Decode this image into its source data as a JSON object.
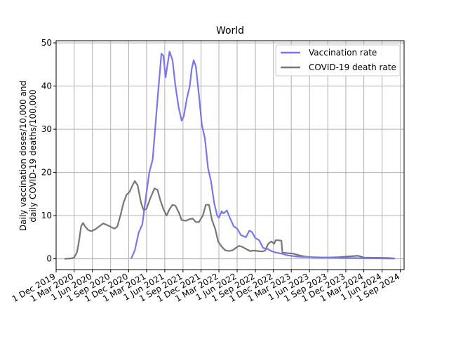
{
  "chart_data": {
    "type": "line",
    "title": "World",
    "ylabel_lines": [
      "Daily vaccination doses/10,000 and",
      "daily COVID-19 deaths/100,000"
    ],
    "xlabel": "",
    "ylim": [
      -2.5,
      50.5
    ],
    "xlim": [
      "2019-12-01",
      "2024-09-20"
    ],
    "grid": true,
    "legend_position": "top-right",
    "x_ticks": [
      "2019-12-01",
      "2020-03-01",
      "2020-06-01",
      "2020-09-01",
      "2020-12-01",
      "2021-03-01",
      "2021-06-01",
      "2021-09-01",
      "2021-12-01",
      "2022-03-01",
      "2022-06-01",
      "2022-09-01",
      "2022-12-01",
      "2023-03-01",
      "2023-06-01",
      "2023-09-01",
      "2023-12-01",
      "2024-03-01",
      "2024-06-01",
      "2024-09-01"
    ],
    "x_tick_labels": [
      "1 Dec 2019",
      "1 Mar 2020",
      "1 Jun 2020",
      "1 Sep 2020",
      "1 Dec 2020",
      "1 Mar 2021",
      "1 Jun 2021",
      "1 Sep 2021",
      "1 Dec 2021",
      "1 Mar 2022",
      "1 Jun 2022",
      "1 Sep 2022",
      "1 Dec 2022",
      "1 Mar 2023",
      "1 Jun 2023",
      "1 Sep 2023",
      "1 Dec 2023",
      "1 Mar 2024",
      "1 Jun 2024",
      "1 Sep 2024"
    ],
    "y_ticks": [
      0,
      10,
      20,
      30,
      40,
      50
    ],
    "y_tick_labels": [
      "0",
      "10",
      "20",
      "30",
      "40",
      "50"
    ],
    "series": [
      {
        "name": "Vaccination rate",
        "color": "#7777ee",
        "points": [
          [
            "2020-12-15",
            0.2
          ],
          [
            "2021-01-01",
            2
          ],
          [
            "2021-01-20",
            6
          ],
          [
            "2021-02-08",
            8
          ],
          [
            "2021-02-25",
            14
          ],
          [
            "2021-03-15",
            20
          ],
          [
            "2021-04-01",
            23
          ],
          [
            "2021-04-15",
            31
          ],
          [
            "2021-05-01",
            40
          ],
          [
            "2021-05-15",
            47.5
          ],
          [
            "2021-05-25",
            47
          ],
          [
            "2021-06-05",
            42
          ],
          [
            "2021-06-15",
            45
          ],
          [
            "2021-06-25",
            48
          ],
          [
            "2021-07-10",
            46
          ],
          [
            "2021-07-25",
            40
          ],
          [
            "2021-08-10",
            35
          ],
          [
            "2021-08-25",
            32
          ],
          [
            "2021-09-05",
            33
          ],
          [
            "2021-09-20",
            37
          ],
          [
            "2021-10-05",
            40
          ],
          [
            "2021-10-15",
            44
          ],
          [
            "2021-10-25",
            46
          ],
          [
            "2021-11-05",
            44.5
          ],
          [
            "2021-11-20",
            38
          ],
          [
            "2021-12-05",
            31
          ],
          [
            "2021-12-20",
            28
          ],
          [
            "2022-01-05",
            21
          ],
          [
            "2022-01-20",
            18
          ],
          [
            "2022-02-05",
            13
          ],
          [
            "2022-02-20",
            10
          ],
          [
            "2022-03-01",
            9.5
          ],
          [
            "2022-03-15",
            11
          ],
          [
            "2022-03-25",
            10.5
          ],
          [
            "2022-04-10",
            11.2
          ],
          [
            "2022-04-25",
            9.5
          ],
          [
            "2022-05-15",
            7.5
          ],
          [
            "2022-06-01",
            7
          ],
          [
            "2022-06-20",
            5.5
          ],
          [
            "2022-07-15",
            5
          ],
          [
            "2022-08-01",
            6.5
          ],
          [
            "2022-08-15",
            6.2
          ],
          [
            "2022-09-01",
            4.8
          ],
          [
            "2022-09-20",
            4.3
          ],
          [
            "2022-10-10",
            2.5
          ],
          [
            "2022-11-01",
            2.3
          ],
          [
            "2022-11-20",
            1.8
          ],
          [
            "2022-12-10",
            1.5
          ],
          [
            "2023-01-10",
            1.2
          ],
          [
            "2023-02-10",
            0.8
          ],
          [
            "2023-04-01",
            0.5
          ],
          [
            "2023-06-01",
            0.4
          ],
          [
            "2023-09-01",
            0.3
          ],
          [
            "2023-12-01",
            0.2
          ],
          [
            "2024-03-01",
            0.15
          ],
          [
            "2024-06-01",
            0.1
          ],
          [
            "2024-08-01",
            0.05
          ]
        ]
      },
      {
        "name": "COVID-19 death rate",
        "color": "#777777",
        "points": [
          [
            "2020-01-15",
            0
          ],
          [
            "2020-02-15",
            0.1
          ],
          [
            "2020-03-01",
            0.3
          ],
          [
            "2020-03-15",
            1.5
          ],
          [
            "2020-03-25",
            4
          ],
          [
            "2020-04-05",
            7.5
          ],
          [
            "2020-04-15",
            8.3
          ],
          [
            "2020-04-25",
            7.5
          ],
          [
            "2020-05-10",
            6.7
          ],
          [
            "2020-05-25",
            6.4
          ],
          [
            "2020-06-15",
            6.8
          ],
          [
            "2020-07-05",
            7.5
          ],
          [
            "2020-07-25",
            8.2
          ],
          [
            "2020-08-15",
            7.8
          ],
          [
            "2020-09-05",
            7.3
          ],
          [
            "2020-09-20",
            7
          ],
          [
            "2020-10-05",
            7.5
          ],
          [
            "2020-10-20",
            10
          ],
          [
            "2020-11-05",
            13
          ],
          [
            "2020-11-20",
            14.8
          ],
          [
            "2020-12-05",
            15.5
          ],
          [
            "2020-12-20",
            17
          ],
          [
            "2021-01-01",
            18
          ],
          [
            "2021-01-15",
            17
          ],
          [
            "2021-02-01",
            13
          ],
          [
            "2021-02-15",
            11.2
          ],
          [
            "2021-03-01",
            11.6
          ],
          [
            "2021-03-20",
            14
          ],
          [
            "2021-04-10",
            16.3
          ],
          [
            "2021-04-25",
            16
          ],
          [
            "2021-05-10",
            13.5
          ],
          [
            "2021-05-25",
            11.5
          ],
          [
            "2021-06-10",
            10
          ],
          [
            "2021-06-25",
            11.5
          ],
          [
            "2021-07-10",
            12.5
          ],
          [
            "2021-07-25",
            12.3
          ],
          [
            "2021-08-10",
            10.8
          ],
          [
            "2021-08-25",
            9
          ],
          [
            "2021-09-15",
            8.8
          ],
          [
            "2021-10-05",
            9.2
          ],
          [
            "2021-10-20",
            9.3
          ],
          [
            "2021-11-05",
            8.5
          ],
          [
            "2021-11-20",
            8.5
          ],
          [
            "2021-12-10",
            10
          ],
          [
            "2021-12-25",
            12.5
          ],
          [
            "2022-01-10",
            12.5
          ],
          [
            "2022-01-25",
            9
          ],
          [
            "2022-02-10",
            7
          ],
          [
            "2022-02-25",
            4
          ],
          [
            "2022-03-15",
            2.8
          ],
          [
            "2022-04-01",
            2
          ],
          [
            "2022-04-20",
            1.8
          ],
          [
            "2022-05-10",
            2
          ],
          [
            "2022-05-25",
            2.5
          ],
          [
            "2022-06-10",
            3
          ],
          [
            "2022-06-25",
            2.8
          ],
          [
            "2022-07-15",
            2.3
          ],
          [
            "2022-08-05",
            1.8
          ],
          [
            "2022-08-25",
            1.9
          ],
          [
            "2022-09-15",
            1.8
          ],
          [
            "2022-10-05",
            1.7
          ],
          [
            "2022-10-20",
            1.9
          ],
          [
            "2022-11-05",
            3.5
          ],
          [
            "2022-11-20",
            4
          ],
          [
            "2022-12-05",
            3.5
          ],
          [
            "2022-12-12",
            4.3
          ],
          [
            "2022-12-25",
            4.3
          ],
          [
            "2023-01-10",
            4.2
          ],
          [
            "2023-01-15",
            1.5
          ],
          [
            "2023-02-10",
            1.3
          ],
          [
            "2023-03-10",
            1.2
          ],
          [
            "2023-04-10",
            0.8
          ],
          [
            "2023-05-10",
            0.5
          ],
          [
            "2023-07-01",
            0.3
          ],
          [
            "2023-09-01",
            0.3
          ],
          [
            "2023-11-01",
            0.4
          ],
          [
            "2024-01-01",
            0.6
          ],
          [
            "2024-02-01",
            0.7
          ],
          [
            "2024-03-01",
            0.3
          ],
          [
            "2024-05-01",
            0.25
          ],
          [
            "2024-07-01",
            0.2
          ],
          [
            "2024-08-01",
            0.1
          ]
        ]
      }
    ]
  }
}
